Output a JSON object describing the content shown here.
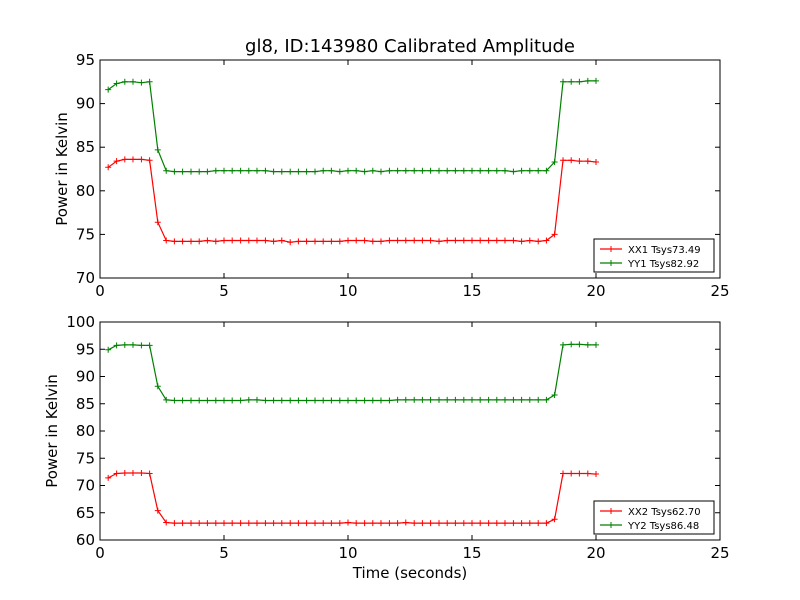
{
  "chart_data": [
    {
      "type": "line",
      "title": "gl8, ID:143980 Calibrated Amplitude",
      "xlabel": "",
      "ylabel": "Power in Kelvin",
      "xlim": [
        0,
        25
      ],
      "ylim": [
        70,
        95
      ],
      "xticks": [
        "0",
        "5",
        "10",
        "15",
        "20",
        "25"
      ],
      "yticks": [
        "70",
        "75",
        "80",
        "85",
        "90",
        "95"
      ],
      "legend_position": "lower-right",
      "grid": false,
      "x": [
        0.33,
        0.67,
        1.0,
        1.33,
        1.67,
        2.0,
        2.33,
        2.67,
        3.0,
        3.33,
        3.67,
        4.0,
        4.33,
        4.67,
        5.0,
        5.33,
        5.67,
        6.0,
        6.33,
        6.67,
        7.0,
        7.33,
        7.67,
        8.0,
        8.33,
        8.67,
        9.0,
        9.33,
        9.67,
        10.0,
        10.33,
        10.67,
        11.0,
        11.33,
        11.67,
        12.0,
        12.33,
        12.67,
        13.0,
        13.33,
        13.67,
        14.0,
        14.33,
        14.67,
        15.0,
        15.33,
        15.67,
        16.0,
        16.33,
        16.67,
        17.0,
        17.33,
        17.67,
        18.0,
        18.33,
        18.67,
        19.0,
        19.33,
        19.67,
        20.0
      ],
      "series": [
        {
          "name": "XX1 Tsys73.49",
          "color": "#ff0000",
          "values": [
            82.7,
            83.4,
            83.6,
            83.6,
            83.6,
            83.5,
            76.4,
            74.3,
            74.2,
            74.2,
            74.2,
            74.2,
            74.3,
            74.2,
            74.3,
            74.3,
            74.3,
            74.3,
            74.3,
            74.3,
            74.2,
            74.3,
            74.1,
            74.2,
            74.2,
            74.2,
            74.2,
            74.2,
            74.2,
            74.3,
            74.3,
            74.3,
            74.2,
            74.2,
            74.3,
            74.3,
            74.3,
            74.3,
            74.3,
            74.3,
            74.2,
            74.3,
            74.3,
            74.3,
            74.3,
            74.3,
            74.3,
            74.3,
            74.3,
            74.3,
            74.2,
            74.3,
            74.2,
            74.3,
            75.0,
            83.5,
            83.5,
            83.4,
            83.4,
            83.3
          ]
        },
        {
          "name": "YY1 Tsys82.92",
          "color": "#008000",
          "values": [
            91.6,
            92.3,
            92.5,
            92.5,
            92.4,
            92.5,
            84.7,
            82.3,
            82.2,
            82.2,
            82.2,
            82.2,
            82.2,
            82.3,
            82.3,
            82.3,
            82.3,
            82.3,
            82.3,
            82.3,
            82.2,
            82.2,
            82.2,
            82.2,
            82.2,
            82.2,
            82.3,
            82.3,
            82.2,
            82.3,
            82.3,
            82.2,
            82.3,
            82.2,
            82.3,
            82.3,
            82.3,
            82.3,
            82.3,
            82.3,
            82.3,
            82.3,
            82.3,
            82.3,
            82.3,
            82.3,
            82.3,
            82.3,
            82.3,
            82.2,
            82.3,
            82.3,
            82.3,
            82.3,
            83.3,
            92.5,
            92.5,
            92.5,
            92.6,
            92.6
          ]
        }
      ]
    },
    {
      "type": "line",
      "title": "",
      "xlabel": "Time (seconds)",
      "ylabel": "Power in Kelvin",
      "xlim": [
        0,
        25
      ],
      "ylim": [
        60,
        100
      ],
      "xticks": [
        "0",
        "5",
        "10",
        "15",
        "20",
        "25"
      ],
      "yticks": [
        "60",
        "65",
        "70",
        "75",
        "80",
        "85",
        "90",
        "95",
        "100"
      ],
      "legend_position": "lower-right",
      "grid": false,
      "x": [
        0.33,
        0.67,
        1.0,
        1.33,
        1.67,
        2.0,
        2.33,
        2.67,
        3.0,
        3.33,
        3.67,
        4.0,
        4.33,
        4.67,
        5.0,
        5.33,
        5.67,
        6.0,
        6.33,
        6.67,
        7.0,
        7.33,
        7.67,
        8.0,
        8.33,
        8.67,
        9.0,
        9.33,
        9.67,
        10.0,
        10.33,
        10.67,
        11.0,
        11.33,
        11.67,
        12.0,
        12.33,
        12.67,
        13.0,
        13.33,
        13.67,
        14.0,
        14.33,
        14.67,
        15.0,
        15.33,
        15.67,
        16.0,
        16.33,
        16.67,
        17.0,
        17.33,
        17.67,
        18.0,
        18.33,
        18.67,
        19.0,
        19.33,
        19.67,
        20.0
      ],
      "series": [
        {
          "name": "XX2 Tsys62.70",
          "color": "#ff0000",
          "values": [
            71.4,
            72.2,
            72.3,
            72.3,
            72.3,
            72.2,
            65.4,
            63.2,
            63.1,
            63.1,
            63.1,
            63.1,
            63.1,
            63.1,
            63.1,
            63.1,
            63.1,
            63.1,
            63.1,
            63.1,
            63.1,
            63.1,
            63.1,
            63.1,
            63.1,
            63.1,
            63.1,
            63.1,
            63.1,
            63.2,
            63.1,
            63.1,
            63.1,
            63.1,
            63.1,
            63.1,
            63.2,
            63.1,
            63.1,
            63.1,
            63.1,
            63.1,
            63.1,
            63.1,
            63.1,
            63.1,
            63.1,
            63.1,
            63.1,
            63.1,
            63.1,
            63.1,
            63.1,
            63.1,
            63.8,
            72.2,
            72.2,
            72.2,
            72.2,
            72.1
          ]
        },
        {
          "name": "YY2 Tsys86.48",
          "color": "#008000",
          "values": [
            94.9,
            95.7,
            95.8,
            95.8,
            95.7,
            95.7,
            88.2,
            85.7,
            85.6,
            85.6,
            85.6,
            85.6,
            85.6,
            85.6,
            85.6,
            85.6,
            85.6,
            85.7,
            85.7,
            85.6,
            85.6,
            85.6,
            85.6,
            85.6,
            85.6,
            85.6,
            85.6,
            85.6,
            85.6,
            85.6,
            85.6,
            85.6,
            85.6,
            85.6,
            85.6,
            85.7,
            85.7,
            85.7,
            85.7,
            85.7,
            85.7,
            85.7,
            85.7,
            85.7,
            85.7,
            85.7,
            85.7,
            85.7,
            85.7,
            85.7,
            85.7,
            85.7,
            85.7,
            85.7,
            86.6,
            95.8,
            95.9,
            95.9,
            95.8,
            95.8
          ]
        }
      ]
    }
  ]
}
